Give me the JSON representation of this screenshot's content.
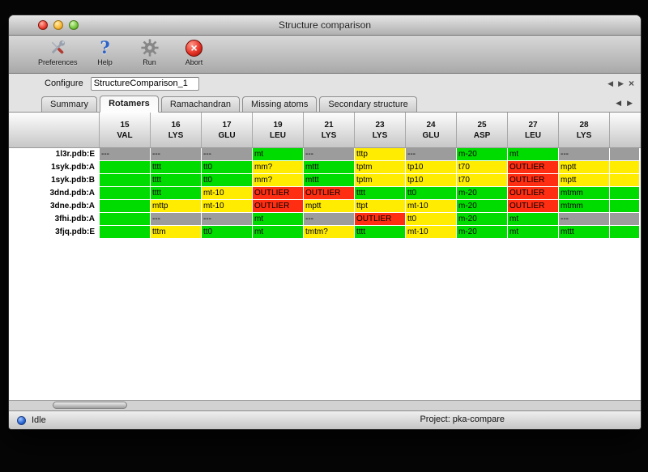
{
  "window": {
    "title": "Structure comparison"
  },
  "toolbar": {
    "items": [
      {
        "label": "Preferences"
      },
      {
        "label": "Help"
      },
      {
        "label": "Run"
      },
      {
        "label": "Abort"
      }
    ]
  },
  "configure": {
    "label": "Configure",
    "value": "StructureComparison_1"
  },
  "tabs": {
    "items": [
      {
        "label": "Summary",
        "active": false
      },
      {
        "label": "Rotamers",
        "active": true
      },
      {
        "label": "Ramachandran",
        "active": false
      },
      {
        "label": "Missing atoms",
        "active": false
      },
      {
        "label": "Secondary structure",
        "active": false
      }
    ]
  },
  "icons": {
    "help_glyph": "?",
    "abort_glyph": "×",
    "prev_glyph": "◀",
    "next_glyph": "▶",
    "close_glyph": "×"
  },
  "colors": {
    "green": "#00dc00",
    "yellow": "#ffec00",
    "red": "#ff2e12",
    "gray": "#9c9c9c"
  },
  "table": {
    "columns": [
      {
        "num": "15",
        "res": "VAL"
      },
      {
        "num": "16",
        "res": "LYS"
      },
      {
        "num": "17",
        "res": "GLU"
      },
      {
        "num": "19",
        "res": "LEU"
      },
      {
        "num": "21",
        "res": "LYS"
      },
      {
        "num": "23",
        "res": "LYS"
      },
      {
        "num": "24",
        "res": "GLU"
      },
      {
        "num": "25",
        "res": "ASP"
      },
      {
        "num": "27",
        "res": "LEU"
      },
      {
        "num": "28",
        "res": "LYS"
      },
      {
        "num": "",
        "res": "",
        "partial": true
      }
    ],
    "rows": [
      {
        "label": "1l3r.pdb:E",
        "cells": [
          {
            "t": "---",
            "c": "gray"
          },
          {
            "t": "---",
            "c": "gray"
          },
          {
            "t": "---",
            "c": "gray"
          },
          {
            "t": "mt",
            "c": "green"
          },
          {
            "t": "---",
            "c": "gray"
          },
          {
            "t": "tttp",
            "c": "yellow"
          },
          {
            "t": "---",
            "c": "gray"
          },
          {
            "t": "m-20",
            "c": "green"
          },
          {
            "t": "mt",
            "c": "green"
          },
          {
            "t": "---",
            "c": "gray"
          },
          {
            "t": "",
            "c": "gray"
          }
        ]
      },
      {
        "label": "1syk.pdb:A",
        "cells": [
          {
            "t": "",
            "c": "green"
          },
          {
            "t": "tttt",
            "c": "green"
          },
          {
            "t": "tt0",
            "c": "green"
          },
          {
            "t": "mm?",
            "c": "yellow"
          },
          {
            "t": "mttt",
            "c": "green"
          },
          {
            "t": "tptm",
            "c": "yellow"
          },
          {
            "t": "tp10",
            "c": "yellow"
          },
          {
            "t": "t70",
            "c": "yellow"
          },
          {
            "t": "OUTLIER",
            "c": "red"
          },
          {
            "t": "mptt",
            "c": "yellow"
          },
          {
            "t": "",
            "c": "yellow"
          }
        ]
      },
      {
        "label": "1syk.pdb:B",
        "cells": [
          {
            "t": "",
            "c": "green"
          },
          {
            "t": "tttt",
            "c": "green"
          },
          {
            "t": "tt0",
            "c": "green"
          },
          {
            "t": "mm?",
            "c": "yellow"
          },
          {
            "t": "mttt",
            "c": "green"
          },
          {
            "t": "tptm",
            "c": "yellow"
          },
          {
            "t": "tp10",
            "c": "yellow"
          },
          {
            "t": "t70",
            "c": "yellow"
          },
          {
            "t": "OUTLIER",
            "c": "red"
          },
          {
            "t": "mptt",
            "c": "yellow"
          },
          {
            "t": "",
            "c": "yellow"
          }
        ]
      },
      {
        "label": "3dnd.pdb:A",
        "cells": [
          {
            "t": "",
            "c": "green"
          },
          {
            "t": "tttt",
            "c": "green"
          },
          {
            "t": "mt-10",
            "c": "yellow"
          },
          {
            "t": "OUTLIER",
            "c": "red"
          },
          {
            "t": "OUTLIER",
            "c": "red"
          },
          {
            "t": "tttt",
            "c": "green"
          },
          {
            "t": "tt0",
            "c": "green"
          },
          {
            "t": "m-20",
            "c": "green"
          },
          {
            "t": "OUTLIER",
            "c": "red"
          },
          {
            "t": "mtmm",
            "c": "green"
          },
          {
            "t": "",
            "c": "green"
          }
        ]
      },
      {
        "label": "3dne.pdb:A",
        "cells": [
          {
            "t": "",
            "c": "green"
          },
          {
            "t": "mttp",
            "c": "yellow"
          },
          {
            "t": "mt-10",
            "c": "yellow"
          },
          {
            "t": "OUTLIER",
            "c": "red"
          },
          {
            "t": "mptt",
            "c": "yellow"
          },
          {
            "t": "ttpt",
            "c": "yellow"
          },
          {
            "t": "mt-10",
            "c": "yellow"
          },
          {
            "t": "m-20",
            "c": "green"
          },
          {
            "t": "OUTLIER",
            "c": "red"
          },
          {
            "t": "mtmm",
            "c": "green"
          },
          {
            "t": "",
            "c": "green"
          }
        ]
      },
      {
        "label": "3fhi.pdb:A",
        "cells": [
          {
            "t": "",
            "c": "green"
          },
          {
            "t": "---",
            "c": "gray"
          },
          {
            "t": "---",
            "c": "gray"
          },
          {
            "t": "mt",
            "c": "green"
          },
          {
            "t": "---",
            "c": "gray"
          },
          {
            "t": "OUTLIER",
            "c": "red"
          },
          {
            "t": "tt0",
            "c": "yellow"
          },
          {
            "t": "m-20",
            "c": "green"
          },
          {
            "t": "mt",
            "c": "green"
          },
          {
            "t": "---",
            "c": "gray"
          },
          {
            "t": "",
            "c": "gray"
          }
        ]
      },
      {
        "label": "3fjq.pdb:E",
        "cells": [
          {
            "t": "",
            "c": "green"
          },
          {
            "t": "tttm",
            "c": "yellow"
          },
          {
            "t": "tt0",
            "c": "green"
          },
          {
            "t": "mt",
            "c": "green"
          },
          {
            "t": "tmtm?",
            "c": "yellow"
          },
          {
            "t": "tttt",
            "c": "green"
          },
          {
            "t": "mt-10",
            "c": "yellow"
          },
          {
            "t": "m-20",
            "c": "green"
          },
          {
            "t": "mt",
            "c": "green"
          },
          {
            "t": "mttt",
            "c": "green"
          },
          {
            "t": "",
            "c": "green"
          }
        ]
      }
    ]
  },
  "statusbar": {
    "status": "Idle",
    "project": "Project: pka-compare"
  }
}
